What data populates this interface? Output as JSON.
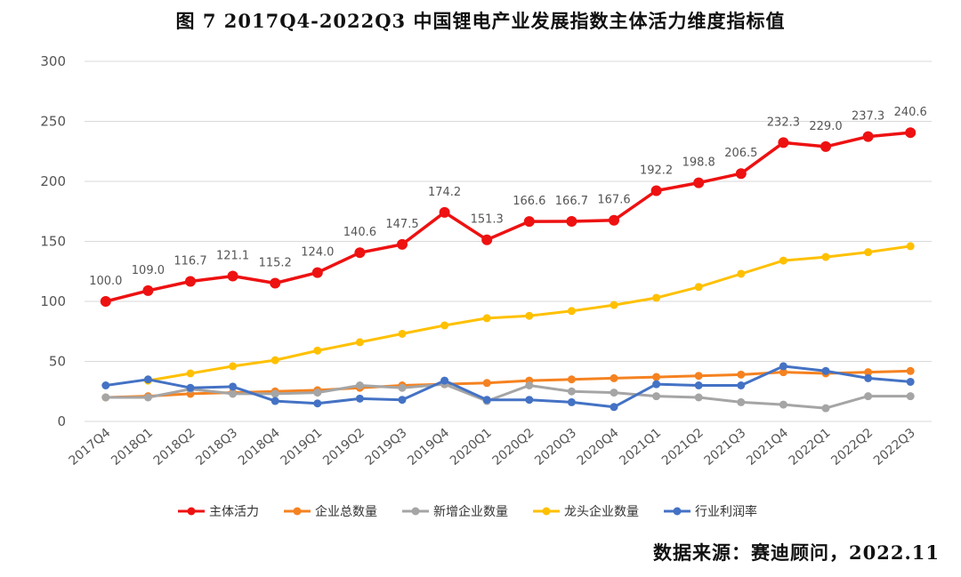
{
  "title": "图 7  2017Q4-2022Q3 中国锂电产业发展指数主体活力维度指标值",
  "source": "数据来源：赛迪顾问，2022.11",
  "chart_data": {
    "type": "line",
    "title": "图 7  2017Q4-2022Q3 中国锂电产业发展指数主体活力维度指标值",
    "xlabel": "",
    "ylabel": "",
    "ylim": [
      0,
      300
    ],
    "yticks": [
      0,
      50,
      100,
      150,
      200,
      250,
      300
    ],
    "grid": true,
    "legend_position": "bottom",
    "categories": [
      "2017Q4",
      "2018Q1",
      "2018Q2",
      "2018Q3",
      "2018Q4",
      "2019Q1",
      "2019Q2",
      "2019Q3",
      "2019Q4",
      "2020Q1",
      "2020Q2",
      "2020Q3",
      "2020Q4",
      "2021Q1",
      "2021Q2",
      "2021Q3",
      "2021Q4",
      "2022Q1",
      "2022Q2",
      "2022Q3"
    ],
    "series": [
      {
        "name": "主体活力",
        "color": "#ee1111",
        "labeled": true,
        "values": [
          100.0,
          109.0,
          116.7,
          121.1,
          115.2,
          124.0,
          140.6,
          147.5,
          174.2,
          151.3,
          166.6,
          166.7,
          167.6,
          192.2,
          198.8,
          206.5,
          232.3,
          229.0,
          237.3,
          240.6
        ],
        "labels": [
          "100.0",
          "109.0",
          "116.7",
          "121.1",
          "115.2",
          "124.0",
          "140.6",
          "147.5",
          "174.2",
          "151.3",
          "166.6",
          "166.7",
          "167.6",
          "192.2",
          "198.8",
          "206.5",
          "232.3",
          "229.0",
          "237.3",
          "240.6"
        ]
      },
      {
        "name": "企业总数量",
        "color": "#f58220",
        "labeled": false,
        "values": [
          20,
          21,
          23,
          24,
          25,
          26,
          28,
          30,
          31,
          32,
          34,
          35,
          36,
          37,
          38,
          39,
          41,
          40,
          41,
          42
        ]
      },
      {
        "name": "新增企业数量",
        "color": "#a5a5a5",
        "labeled": false,
        "values": [
          20,
          20,
          27,
          23,
          23,
          24,
          30,
          28,
          31,
          17,
          30,
          25,
          24,
          21,
          20,
          16,
          14,
          11,
          21,
          21
        ]
      },
      {
        "name": "龙头企业数量",
        "color": "#ffc000",
        "labeled": false,
        "values": [
          null,
          34,
          40,
          46,
          51,
          59,
          66,
          73,
          80,
          86,
          88,
          92,
          97,
          103,
          112,
          123,
          134,
          137,
          141,
          146
        ]
      },
      {
        "name": "行业利润率",
        "color": "#4472c4",
        "labeled": false,
        "values": [
          30,
          35,
          28,
          29,
          17,
          15,
          19,
          18,
          34,
          18,
          18,
          16,
          12,
          31,
          30,
          30,
          46,
          42,
          36,
          33
        ]
      }
    ]
  }
}
